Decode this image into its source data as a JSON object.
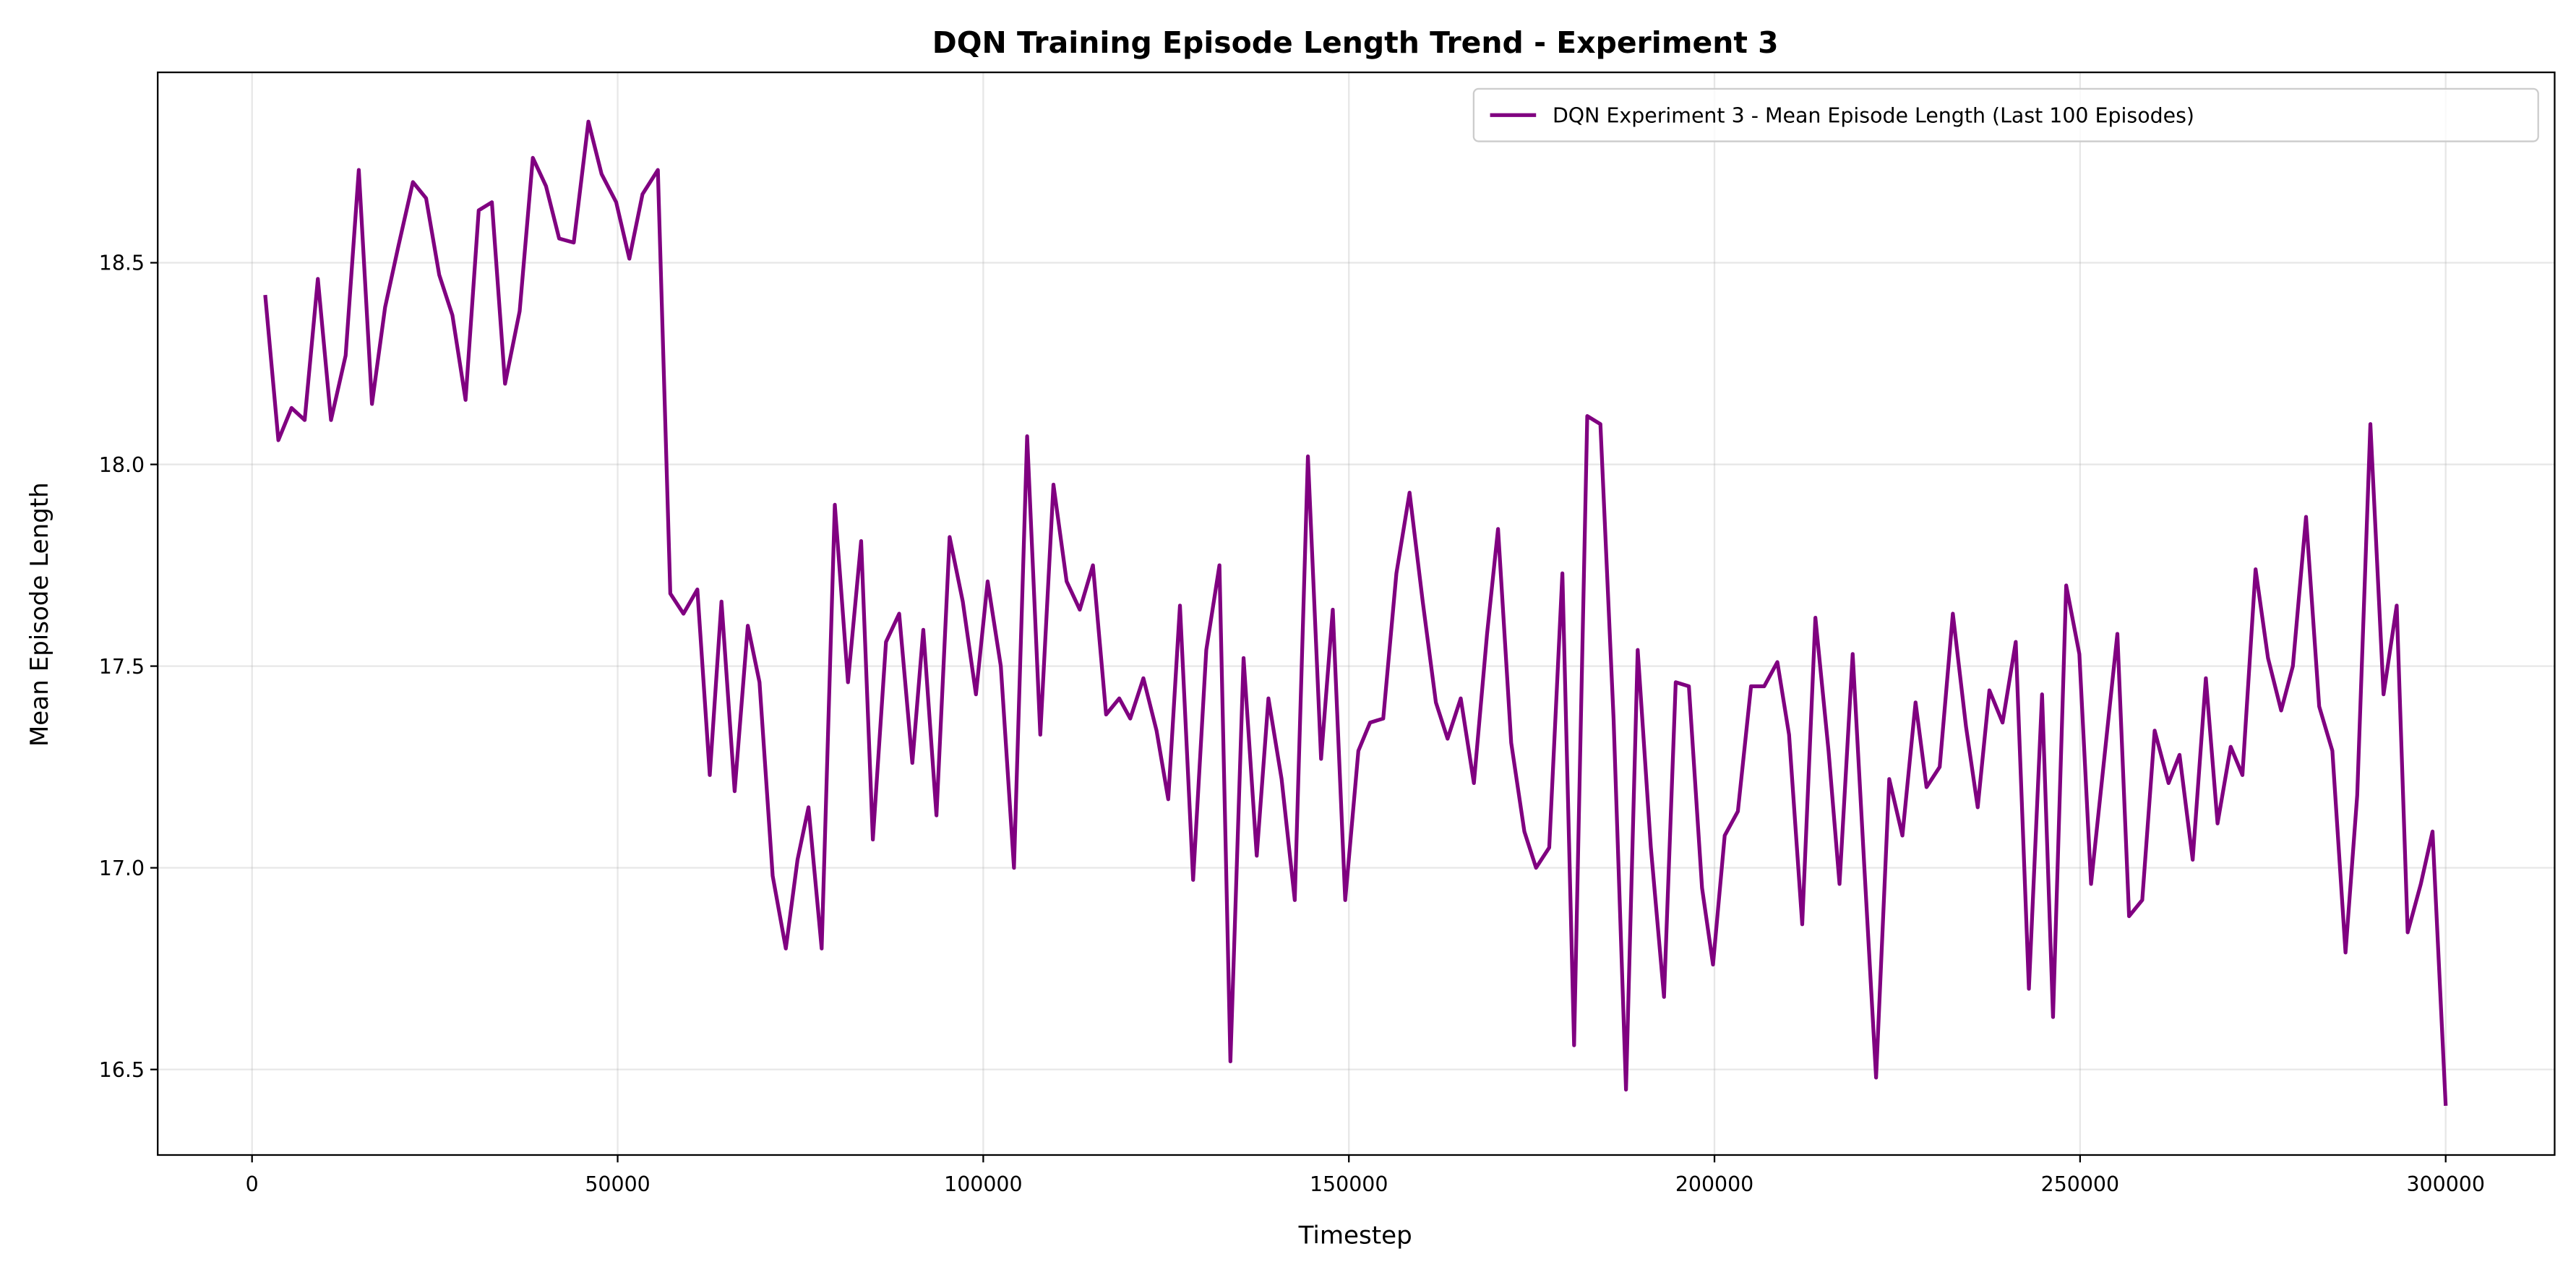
{
  "chart_data": {
    "type": "line",
    "title": "DQN Training Episode Length Trend - Experiment 3",
    "x_label": "Timestep",
    "y_label": "Mean Episode Length",
    "grid": true,
    "legend": "upper right",
    "xlim": [
      -12900,
      314900
    ],
    "ylim": [
      16.288,
      18.972
    ],
    "xticks": [
      0,
      50000,
      100000,
      150000,
      200000,
      250000,
      300000
    ],
    "yticks": [
      16.5,
      17.0,
      17.5,
      18.0,
      18.5
    ],
    "x": [
      1800,
      3600,
      5400,
      7200,
      9000,
      10800,
      12800,
      14600,
      16400,
      18200,
      20000,
      22000,
      23800,
      25600,
      27400,
      29200,
      31000,
      32800,
      34600,
      36600,
      38400,
      40200,
      42000,
      44000,
      46000,
      47800,
      49800,
      51600,
      53400,
      55500,
      57200,
      59000,
      60900,
      62600,
      64200,
      66000,
      67800,
      69400,
      71200,
      73000,
      74600,
      76100,
      77900,
      79700,
      81500,
      83300,
      84900,
      86700,
      88500,
      90300,
      91800,
      93600,
      95400,
      97200,
      99000,
      100600,
      102400,
      104200,
      106000,
      107800,
      109600,
      111400,
      113200,
      115000,
      116800,
      118600,
      120100,
      121900,
      123700,
      125300,
      126900,
      128700,
      130500,
      132300,
      133800,
      135600,
      137400,
      139000,
      140800,
      142600,
      144400,
      146200,
      147800,
      149500,
      151300,
      152900,
      154700,
      156500,
      158300,
      160100,
      161900,
      163500,
      165300,
      167100,
      168900,
      170400,
      172200,
      174000,
      175600,
      177400,
      179200,
      180800,
      182600,
      184400,
      186200,
      187900,
      189500,
      191300,
      193100,
      194700,
      196500,
      198300,
      199800,
      201400,
      203200,
      205000,
      206800,
      208600,
      210200,
      212000,
      213800,
      215600,
      217100,
      218900,
      220500,
      222100,
      223900,
      225700,
      227500,
      229000,
      230800,
      232600,
      234400,
      236000,
      237600,
      239400,
      241200,
      243000,
      244800,
      246300,
      248100,
      249900,
      251500,
      253300,
      255100,
      256700,
      258500,
      260200,
      262100,
      263600,
      265400,
      267200,
      268800,
      270600,
      272200,
      274000,
      275700,
      277500,
      279100,
      280900,
      282700,
      284500,
      286300,
      287900,
      289700,
      291500,
      293300,
      294800,
      296600,
      298200,
      300000
    ],
    "series": [
      {
        "name": "DQN Experiment 3 - Mean Episode Length (Last 100 Episodes)",
        "color": "#800080",
        "values": [
          18.42,
          18.06,
          18.14,
          18.11,
          18.46,
          18.11,
          18.27,
          18.73,
          18.15,
          18.39,
          18.54,
          18.7,
          18.66,
          18.47,
          18.37,
          18.16,
          18.63,
          18.65,
          18.2,
          18.38,
          18.76,
          18.69,
          18.56,
          18.55,
          18.85,
          18.72,
          18.65,
          18.51,
          18.67,
          18.73,
          17.68,
          17.63,
          17.69,
          17.23,
          17.66,
          17.19,
          17.6,
          17.46,
          16.98,
          16.8,
          17.02,
          17.15,
          16.8,
          17.9,
          17.46,
          17.81,
          17.07,
          17.56,
          17.63,
          17.26,
          17.59,
          17.13,
          17.82,
          17.66,
          17.43,
          17.71,
          17.5,
          17.0,
          18.07,
          17.33,
          17.95,
          17.71,
          17.64,
          17.75,
          17.38,
          17.42,
          17.37,
          17.47,
          17.34,
          17.17,
          17.65,
          16.97,
          17.54,
          17.75,
          16.52,
          17.52,
          17.03,
          17.42,
          17.22,
          16.92,
          18.02,
          17.27,
          17.64,
          16.92,
          17.29,
          17.36,
          17.37,
          17.73,
          17.93,
          17.66,
          17.41,
          17.32,
          17.42,
          17.21,
          17.58,
          17.84,
          17.31,
          17.09,
          17.0,
          17.05,
          17.73,
          16.56,
          18.12,
          18.1,
          17.37,
          16.45,
          17.54,
          17.05,
          16.68,
          17.46,
          17.45,
          16.95,
          16.76,
          17.08,
          17.14,
          17.45,
          17.45,
          17.51,
          17.33,
          16.86,
          17.62,
          17.29,
          16.96,
          17.53,
          17.0,
          16.48,
          17.22,
          17.08,
          17.41,
          17.2,
          17.25,
          17.63,
          17.35,
          17.15,
          17.44,
          17.36,
          17.56,
          16.7,
          17.43,
          16.63,
          17.7,
          17.53,
          16.96,
          17.27,
          17.58,
          16.88,
          16.92,
          17.34,
          17.21,
          17.28,
          17.02,
          17.47,
          17.11,
          17.3,
          17.23,
          17.74,
          17.52,
          17.39,
          17.5,
          17.87,
          17.4,
          17.29,
          16.79,
          17.18,
          18.1,
          17.43,
          17.65,
          16.84,
          16.96,
          17.09,
          16.41
        ]
      }
    ]
  }
}
